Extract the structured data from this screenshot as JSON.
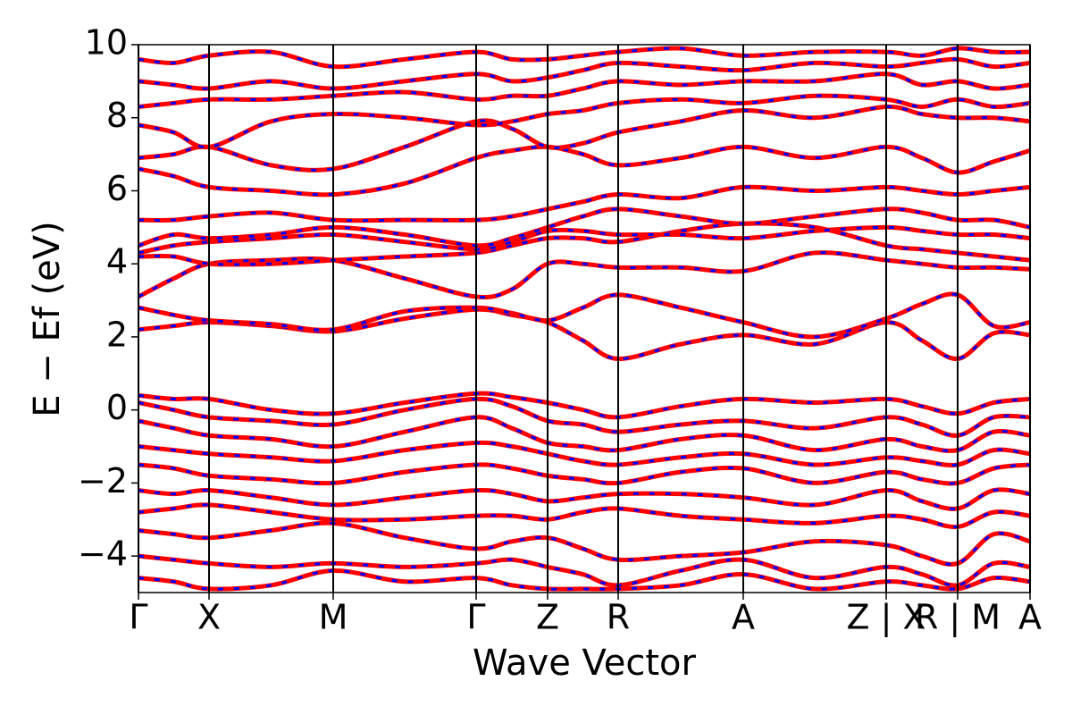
{
  "chart_data": {
    "type": "band_structure",
    "x_label": "Wave Vector",
    "y_label": "E − Ef (eV)",
    "color": "#ff0000",
    "dash_color": "#0000ff",
    "xlim": [
      0,
      9.98
    ],
    "ylim": [
      -5,
      10
    ],
    "xticks": [
      {
        "value": 0,
        "label": "Γ"
      },
      {
        "value": 0.79,
        "label": "X"
      },
      {
        "value": 2.18,
        "label": "M"
      },
      {
        "value": 3.78,
        "label": "Γ"
      },
      {
        "value": 4.58,
        "label": "Z"
      },
      {
        "value": 5.37,
        "label": "R"
      },
      {
        "value": 6.77,
        "label": "A"
      },
      {
        "value": 8.37,
        "label": "Z | X"
      },
      {
        "value": 9.17,
        "label": "R | M"
      },
      {
        "value": 9.98,
        "label": "A"
      }
    ],
    "yticks": [
      {
        "value": -4,
        "label": "−4"
      },
      {
        "value": -2,
        "label": "−2"
      },
      0,
      2,
      4,
      6,
      8,
      10
    ],
    "x": [
      0,
      0.395,
      0.79,
      1.485,
      2.18,
      2.98,
      3.78,
      4.18,
      4.58,
      4.975,
      5.37,
      6.07,
      6.77,
      7.57,
      8.37,
      8.77,
      9.17,
      9.575,
      9.98
    ],
    "bands": [
      [
        2.2,
        2.3,
        2.4,
        2.3,
        2.15,
        2.5,
        2.75,
        2.6,
        2.4,
        1.9,
        1.4,
        1.8,
        2.05,
        1.8,
        2.4,
        1.9,
        1.4,
        2.1,
        2.05
      ],
      [
        2.8,
        2.6,
        2.45,
        2.35,
        2.2,
        2.7,
        2.8,
        2.65,
        2.45,
        2.8,
        3.15,
        2.8,
        2.4,
        2.0,
        2.5,
        2.9,
        3.15,
        2.3,
        2.4
      ],
      [
        3.1,
        3.6,
        4.0,
        4.1,
        4.1,
        3.6,
        3.1,
        3.3,
        4.0,
        4.0,
        3.9,
        3.9,
        3.8,
        4.3,
        4.1,
        4.0,
        3.9,
        3.9,
        3.85
      ],
      [
        4.2,
        4.2,
        4.0,
        4.0,
        4.1,
        4.2,
        4.3,
        4.5,
        4.7,
        4.7,
        4.6,
        4.9,
        5.1,
        5.0,
        4.5,
        4.4,
        4.3,
        4.2,
        4.1
      ],
      [
        4.3,
        4.5,
        4.6,
        4.7,
        4.8,
        4.6,
        4.4,
        4.6,
        4.9,
        4.9,
        4.8,
        4.8,
        4.7,
        4.9,
        5.0,
        4.9,
        4.8,
        4.8,
        4.7
      ],
      [
        4.5,
        4.8,
        4.7,
        4.8,
        5.0,
        4.8,
        4.5,
        4.7,
        5.0,
        5.3,
        5.5,
        5.3,
        5.1,
        5.3,
        5.5,
        5.4,
        5.2,
        5.2,
        5.0
      ],
      [
        5.2,
        5.2,
        5.3,
        5.4,
        5.2,
        5.2,
        5.2,
        5.3,
        5.5,
        5.7,
        5.9,
        5.8,
        6.1,
        6.0,
        6.1,
        6.0,
        5.9,
        6.0,
        6.1
      ],
      [
        6.6,
        6.4,
        6.1,
        6.0,
        5.9,
        6.2,
        6.9,
        7.1,
        7.2,
        7.0,
        6.7,
        6.9,
        7.2,
        6.9,
        7.2,
        6.9,
        6.5,
        6.8,
        7.1
      ],
      [
        6.9,
        7.0,
        7.2,
        6.7,
        6.6,
        7.2,
        7.9,
        7.7,
        7.2,
        7.3,
        7.6,
        7.9,
        8.2,
        8.0,
        8.3,
        8.1,
        8.0,
        8.0,
        7.9
      ],
      [
        7.8,
        7.6,
        7.2,
        7.9,
        8.1,
        8.0,
        7.8,
        7.9,
        8.1,
        8.2,
        8.4,
        8.5,
        8.4,
        8.6,
        8.5,
        8.3,
        8.5,
        8.3,
        8.4
      ],
      [
        8.3,
        8.4,
        8.5,
        8.5,
        8.6,
        8.7,
        8.5,
        8.6,
        8.6,
        8.8,
        9.0,
        8.9,
        9.0,
        9.0,
        9.2,
        8.9,
        9.0,
        8.8,
        8.9
      ],
      [
        9.0,
        8.9,
        8.8,
        9.0,
        8.8,
        9.0,
        9.2,
        9.0,
        9.1,
        9.3,
        9.5,
        9.4,
        9.3,
        9.5,
        9.4,
        9.5,
        9.6,
        9.4,
        9.5
      ],
      [
        9.6,
        9.5,
        9.7,
        9.8,
        9.4,
        9.6,
        9.8,
        9.6,
        9.6,
        9.7,
        9.8,
        9.9,
        9.7,
        9.8,
        9.8,
        9.7,
        9.9,
        9.8,
        9.8
      ],
      [
        0.4,
        0.3,
        0.3,
        0.0,
        -0.1,
        0.2,
        0.45,
        0.35,
        0.2,
        0.0,
        -0.2,
        0.1,
        0.3,
        0.2,
        0.3,
        0.1,
        -0.1,
        0.2,
        0.3
      ],
      [
        0.2,
        0.0,
        -0.2,
        -0.3,
        -0.4,
        0.0,
        0.3,
        0.1,
        -0.3,
        -0.4,
        -0.6,
        -0.4,
        -0.3,
        -0.5,
        -0.2,
        -0.4,
        -0.7,
        -0.2,
        -0.2
      ],
      [
        -0.3,
        -0.5,
        -0.7,
        -0.8,
        -1.0,
        -0.6,
        -0.2,
        -0.5,
        -0.9,
        -1.0,
        -1.1,
        -0.8,
        -0.7,
        -1.1,
        -0.8,
        -1.0,
        -1.1,
        -0.6,
        -0.7
      ],
      [
        -1.0,
        -1.1,
        -1.2,
        -1.3,
        -1.4,
        -1.1,
        -0.9,
        -1.0,
        -1.2,
        -1.4,
        -1.5,
        -1.3,
        -1.2,
        -1.5,
        -1.3,
        -1.4,
        -1.5,
        -1.1,
        -1.2
      ],
      [
        -1.5,
        -1.6,
        -1.8,
        -1.9,
        -2.0,
        -1.7,
        -1.5,
        -1.6,
        -1.8,
        -1.9,
        -2.0,
        -1.7,
        -1.6,
        -2.0,
        -1.7,
        -1.9,
        -2.0,
        -1.6,
        -1.5
      ],
      [
        -2.2,
        -2.3,
        -2.2,
        -2.4,
        -2.6,
        -2.4,
        -2.2,
        -2.3,
        -2.5,
        -2.4,
        -2.3,
        -2.3,
        -2.4,
        -2.6,
        -2.2,
        -2.5,
        -2.7,
        -2.2,
        -2.3
      ],
      [
        -2.8,
        -2.7,
        -2.6,
        -2.8,
        -3.0,
        -3.0,
        -2.9,
        -2.9,
        -3.0,
        -2.8,
        -2.7,
        -2.9,
        -3.0,
        -3.1,
        -2.9,
        -3.0,
        -3.2,
        -2.8,
        -2.9
      ],
      [
        -3.3,
        -3.4,
        -3.5,
        -3.3,
        -3.1,
        -3.5,
        -3.8,
        -3.6,
        -3.5,
        -3.8,
        -4.1,
        -4.0,
        -3.9,
        -3.6,
        -3.7,
        -4.0,
        -4.2,
        -3.4,
        -3.6
      ],
      [
        -4.0,
        -4.1,
        -4.2,
        -4.3,
        -4.2,
        -4.3,
        -4.2,
        -4.1,
        -4.3,
        -4.5,
        -4.8,
        -4.4,
        -4.1,
        -4.6,
        -4.3,
        -4.5,
        -4.8,
        -4.2,
        -4.3
      ],
      [
        -4.6,
        -4.7,
        -4.9,
        -4.8,
        -4.4,
        -4.7,
        -4.6,
        -4.8,
        -4.9,
        -4.9,
        -4.9,
        -4.8,
        -4.5,
        -4.9,
        -4.7,
        -4.8,
        -4.9,
        -4.6,
        -4.7
      ]
    ]
  }
}
